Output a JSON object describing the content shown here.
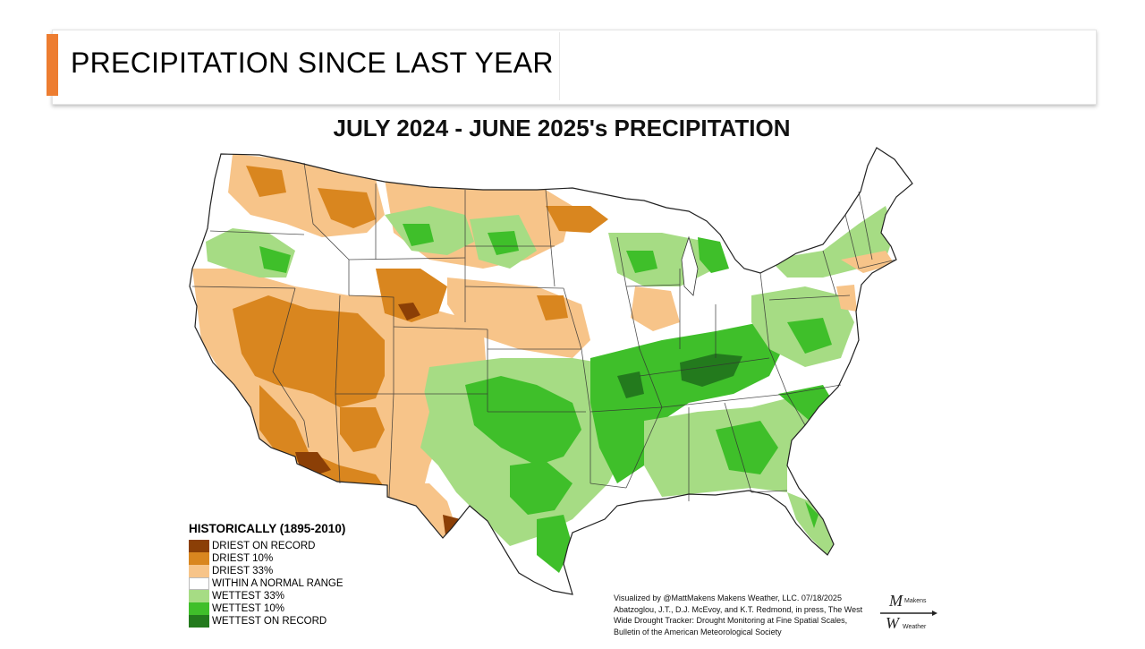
{
  "slide": {
    "title": "PRECIPITATION SINCE LAST YEAR"
  },
  "map": {
    "title": "JULY 2024 - JUNE 2025's PRECIPITATION",
    "legend": {
      "heading": "HISTORICALLY (1895-2010)",
      "items": [
        {
          "label": "DRIEST ON RECORD",
          "color": "#8b3f06"
        },
        {
          "label": "DRIEST 10%",
          "color": "#d9861f"
        },
        {
          "label": "DRIEST 33%",
          "color": "#f7c489"
        },
        {
          "label": "WITHIN A NORMAL RANGE",
          "color": "#ffffff"
        },
        {
          "label": "WETTEST 33%",
          "color": "#a6dc84"
        },
        {
          "label": "WETTEST 10%",
          "color": "#3fbf2a"
        },
        {
          "label": "WETTEST ON RECORD",
          "color": "#237a1d"
        }
      ]
    },
    "credits": [
      "Visualized by @MattMakens Makens Weather, LLC. 07/18/2025",
      "Abatzoglou, J.T., D.J. McEvoy, and K.T. Redmond, in press, The West",
      "Wide Drought Tracker: Drought Monitoring at Fine Spatial Scales,",
      "Bulletin of the American Meteorological Society"
    ],
    "logo": {
      "word1": "Makens",
      "word2": "Weather"
    }
  }
}
